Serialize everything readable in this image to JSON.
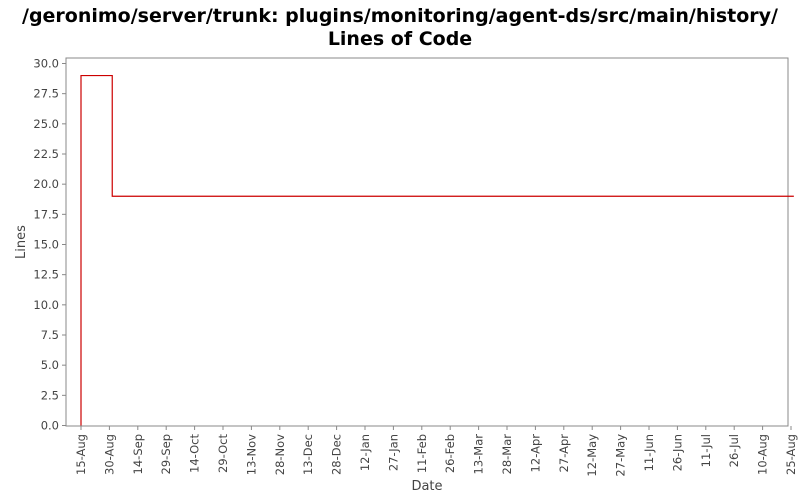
{
  "chart_data": {
    "type": "line",
    "title_line1": "/geronimo/server/trunk: plugins/monitoring/agent-ds/src/main/history/",
    "title_line2": "Lines of Code",
    "xlabel": "Date",
    "ylabel": "Lines",
    "x_ticks": [
      "15-Aug",
      "30-Aug",
      "14-Sep",
      "29-Sep",
      "14-Oct",
      "29-Oct",
      "13-Nov",
      "28-Nov",
      "13-Dec",
      "28-Dec",
      "12-Jan",
      "27-Jan",
      "11-Feb",
      "26-Feb",
      "13-Mar",
      "28-Mar",
      "12-Apr",
      "27-Apr",
      "12-May",
      "27-May",
      "11-Jun",
      "26-Jun",
      "11-Jul",
      "26-Jul",
      "10-Aug",
      "25-Aug"
    ],
    "y_ticks": [
      "0.0",
      "2.5",
      "5.0",
      "7.5",
      "10.0",
      "12.5",
      "15.0",
      "17.5",
      "20.0",
      "22.5",
      "25.0",
      "27.5",
      "30.0"
    ],
    "ylim": [
      0,
      30
    ],
    "series": [
      {
        "color": "#cc0000",
        "step": true,
        "x": [
          "15-Aug",
          "30-Aug",
          "24-Aug"
        ],
        "points_tick_index": [
          0,
          1.1,
          25.1
        ],
        "y": [
          29,
          19,
          19
        ]
      }
    ],
    "grid": false,
    "legend": "none"
  }
}
